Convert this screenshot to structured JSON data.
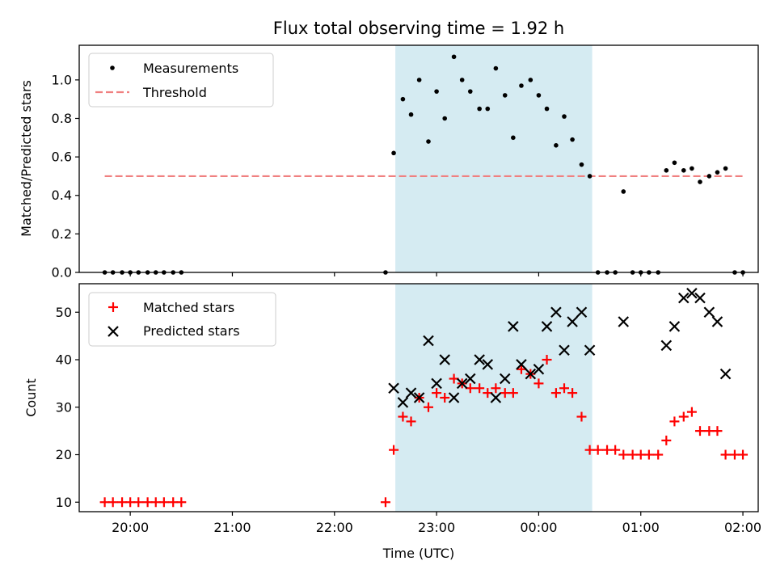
{
  "chart_data": [
    {
      "type": "scatter",
      "title": "Flux total observing time = 1.92 h",
      "ylabel": "Matched/Predicted stars",
      "ylim": [
        0,
        1.18
      ],
      "xlim": [
        -0.5,
        6.15
      ],
      "yticks": [
        "0.0",
        "0.2",
        "0.4",
        "0.6",
        "0.8",
        "1.0"
      ],
      "ytick_values": [
        0,
        0.2,
        0.4,
        0.6,
        0.8,
        1.0
      ],
      "shaded_span": [
        2.6,
        4.52
      ],
      "shaded_color": "#add8e6",
      "threshold": {
        "name": "Threshold",
        "y": 0.5,
        "x_range": [
          -0.25,
          6.0
        ],
        "color": "#f08080"
      },
      "legend_position": "top-left",
      "series": [
        {
          "name": "Measurements",
          "color": "#000000",
          "marker": "dot",
          "x": [
            -0.25,
            -0.17,
            -0.08,
            0.0,
            0.08,
            0.17,
            0.25,
            0.33,
            0.42,
            0.5,
            2.5,
            2.58,
            2.67,
            2.75,
            2.83,
            2.92,
            3.0,
            3.08,
            3.17,
            3.25,
            3.33,
            3.42,
            3.5,
            3.58,
            3.67,
            3.75,
            3.83,
            3.92,
            4.0,
            4.08,
            4.17,
            4.25,
            4.33,
            4.42,
            4.5,
            4.58,
            4.67,
            4.75,
            4.83,
            4.92,
            5.0,
            5.08,
            5.17,
            5.25,
            5.33,
            5.42,
            5.5,
            5.58,
            5.67,
            5.75,
            5.83,
            5.92,
            6.0
          ],
          "y": [
            0,
            0,
            0,
            0,
            0,
            0,
            0,
            0,
            0,
            0,
            0,
            0.62,
            0.9,
            0.82,
            1.0,
            0.68,
            0.94,
            0.8,
            1.12,
            1.0,
            0.94,
            0.85,
            0.85,
            1.06,
            0.92,
            0.7,
            0.97,
            1.0,
            0.92,
            0.85,
            0.66,
            0.81,
            0.69,
            0.56,
            0.5,
            0,
            0,
            0,
            0.42,
            0,
            0,
            0,
            0,
            0.53,
            0.57,
            0.53,
            0.54,
            0.47,
            0.5,
            0.52,
            0.54,
            0,
            0
          ]
        }
      ]
    },
    {
      "type": "scatter",
      "xlabel": "Time (UTC)",
      "ylabel": "Count",
      "ylim": [
        8,
        56
      ],
      "xlim": [
        -0.5,
        6.15
      ],
      "xticks": [
        "20:00",
        "21:00",
        "22:00",
        "23:00",
        "00:00",
        "01:00",
        "02:00"
      ],
      "xtick_values": [
        0,
        1,
        2,
        3,
        4,
        5,
        6
      ],
      "yticks": [
        "10",
        "20",
        "30",
        "40",
        "50"
      ],
      "ytick_values": [
        10,
        20,
        30,
        40,
        50
      ],
      "shaded_span": [
        2.6,
        4.52
      ],
      "shaded_color": "#add8e6",
      "legend_position": "top-left",
      "series": [
        {
          "name": "Matched stars",
          "color": "#ff0000",
          "marker": "plus",
          "x": [
            -0.25,
            -0.17,
            -0.08,
            0.0,
            0.08,
            0.17,
            0.25,
            0.33,
            0.42,
            0.5,
            2.5,
            2.58,
            2.67,
            2.75,
            2.83,
            2.92,
            3.0,
            3.08,
            3.17,
            3.25,
            3.33,
            3.42,
            3.5,
            3.58,
            3.67,
            3.75,
            3.83,
            3.92,
            4.0,
            4.08,
            4.17,
            4.25,
            4.33,
            4.42,
            4.5,
            4.58,
            4.67,
            4.75,
            4.83,
            4.92,
            5.0,
            5.08,
            5.17,
            5.25,
            5.33,
            5.42,
            5.5,
            5.58,
            5.67,
            5.75,
            5.83,
            5.92,
            6.0
          ],
          "y": [
            10,
            10,
            10,
            10,
            10,
            10,
            10,
            10,
            10,
            10,
            10,
            21,
            28,
            27,
            32,
            30,
            33,
            32,
            36,
            35,
            34,
            34,
            33,
            34,
            33,
            33,
            38,
            37,
            35,
            40,
            33,
            34,
            33,
            28,
            21,
            21,
            21,
            21,
            20,
            20,
            20,
            20,
            20,
            23,
            27,
            28,
            29,
            25,
            25,
            25,
            20,
            20,
            20
          ]
        },
        {
          "name": "Predicted stars",
          "color": "#000000",
          "marker": "x",
          "x": [
            2.58,
            2.67,
            2.75,
            2.83,
            2.92,
            3.0,
            3.08,
            3.17,
            3.25,
            3.33,
            3.42,
            3.5,
            3.58,
            3.67,
            3.75,
            3.83,
            3.92,
            4.0,
            4.08,
            4.17,
            4.25,
            4.33,
            4.42,
            4.5,
            4.83,
            5.25,
            5.33,
            5.42,
            5.5,
            5.58,
            5.67,
            5.75,
            5.83
          ],
          "y": [
            34,
            31,
            33,
            32,
            44,
            35,
            40,
            32,
            35,
            36,
            40,
            39,
            32,
            36,
            47,
            39,
            37,
            38,
            47,
            50,
            42,
            48,
            50,
            42,
            48,
            43,
            47,
            53,
            54,
            53,
            50,
            48,
            37
          ]
        }
      ]
    }
  ]
}
